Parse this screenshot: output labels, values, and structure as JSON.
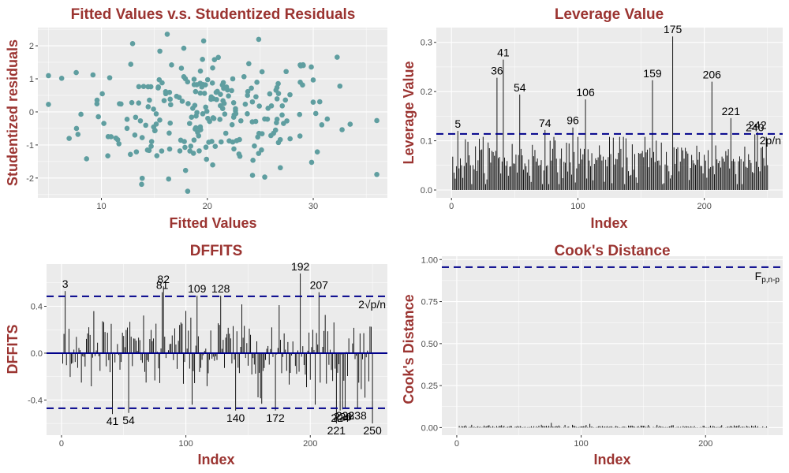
{
  "colors": {
    "panel_bg": "#EBEBEB",
    "grid_major": "#FFFFFF",
    "title": "#9B3431",
    "points": "#5F9EA0",
    "spikes": "#000000",
    "ref_line": "#00008B"
  },
  "chart_data": [
    {
      "type": "scatter",
      "title": "Fitted Values v.s. Studentized Residuals",
      "xlabel": "Fitted Values",
      "ylabel": "Studentized residuals",
      "xlim": [
        4,
        37
      ],
      "ylim": [
        -2.6,
        2.55
      ],
      "xticks": [
        10,
        20,
        30
      ],
      "yticks": [
        -2,
        -1,
        0,
        1,
        2
      ],
      "grid": true
    },
    {
      "type": "bar",
      "title": "Leverage Value",
      "xlabel": "Index",
      "ylabel": "Leverage Value",
      "xlim": [
        -12,
        262
      ],
      "ylim": [
        -0.016,
        0.33
      ],
      "xticks": [
        0,
        100,
        200
      ],
      "yticks": [
        0.0,
        0.1,
        0.2,
        0.3
      ],
      "ytick_labels": [
        "0.0",
        "0.1",
        "0.2",
        "0.3"
      ],
      "grid": true,
      "ref_line": {
        "y": 0.114,
        "label": "2p/n"
      },
      "labeled_points": [
        {
          "index": 5,
          "value": 0.12,
          "label": "5"
        },
        {
          "index": 36,
          "value": 0.228,
          "label": "36"
        },
        {
          "index": 41,
          "value": 0.265,
          "label": "41"
        },
        {
          "index": 54,
          "value": 0.194,
          "label": "54"
        },
        {
          "index": 74,
          "value": 0.122,
          "label": "74"
        },
        {
          "index": 96,
          "value": 0.127,
          "label": "96"
        },
        {
          "index": 106,
          "value": 0.184,
          "label": "106"
        },
        {
          "index": 159,
          "value": 0.223,
          "label": "159"
        },
        {
          "index": 175,
          "value": 0.312,
          "label": "175"
        },
        {
          "index": 206,
          "value": 0.22,
          "label": "206"
        },
        {
          "index": 221,
          "value": 0.146,
          "label": "221"
        },
        {
          "index": 240,
          "value": 0.113,
          "label": "240"
        },
        {
          "index": 242,
          "value": 0.118,
          "label": "242"
        }
      ]
    },
    {
      "type": "bar",
      "title": "DFFITS",
      "xlabel": "Index",
      "ylabel": "DFFITS",
      "xlim": [
        -12,
        262
      ],
      "ylim": [
        -0.7,
        0.76
      ],
      "xticks": [
        0,
        100,
        200
      ],
      "yticks": [
        -0.4,
        0.0,
        0.4
      ],
      "ytick_labels": [
        "-0.4",
        "0.0",
        "0.4"
      ],
      "grid": true,
      "zero_line": 0.0,
      "ref_lines": [
        {
          "y": 0.485,
          "label": "2√p/n"
        },
        {
          "y": -0.47
        }
      ],
      "labeled_points": [
        {
          "index": 3,
          "value": 0.53,
          "label": "3"
        },
        {
          "index": 41,
          "value": -0.52,
          "label": "41"
        },
        {
          "index": 54,
          "value": -0.51,
          "label": "54"
        },
        {
          "index": 81,
          "value": 0.52,
          "label": "81"
        },
        {
          "index": 82,
          "value": 0.57,
          "label": "82"
        },
        {
          "index": 109,
          "value": 0.49,
          "label": "109"
        },
        {
          "index": 128,
          "value": 0.49,
          "label": "128"
        },
        {
          "index": 140,
          "value": -0.49,
          "label": "140"
        },
        {
          "index": 172,
          "value": -0.49,
          "label": "172"
        },
        {
          "index": 192,
          "value": 0.68,
          "label": "192"
        },
        {
          "index": 207,
          "value": 0.52,
          "label": "207"
        },
        {
          "index": 221,
          "value": -0.6,
          "label": "221"
        },
        {
          "index": 224,
          "value": -0.49,
          "label": "224"
        },
        {
          "index": 226,
          "value": -0.48,
          "label": "226"
        },
        {
          "index": 228,
          "value": -0.47,
          "label": "228"
        },
        {
          "index": 238,
          "value": -0.47,
          "label": "238"
        },
        {
          "index": 250,
          "value": -0.6,
          "label": "250"
        }
      ]
    },
    {
      "type": "bar",
      "title": "Cook's Distance",
      "xlabel": "Index",
      "ylabel": "Cook's Distance",
      "xlim": [
        -12,
        262
      ],
      "ylim": [
        -0.045,
        1.02
      ],
      "xticks": [
        0,
        100,
        200
      ],
      "yticks": [
        0.0,
        0.25,
        0.5,
        0.75,
        1.0
      ],
      "ytick_labels": [
        "0.00",
        "0.25",
        "0.50",
        "0.75",
        "1.00"
      ],
      "grid": true,
      "ref_line": {
        "y": 0.955,
        "label": "F",
        "label_sub": "p,n-p"
      }
    }
  ]
}
